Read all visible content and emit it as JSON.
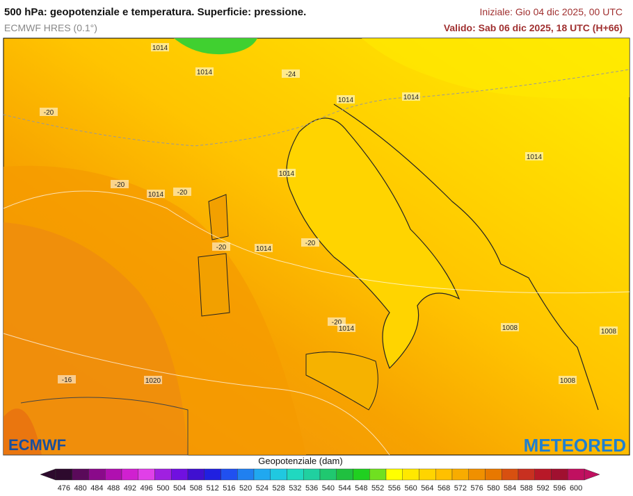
{
  "header": {
    "title": "500 hPa: geopotenziale e temperatura. Superficie: pressione.",
    "model": "ECMWF HRES (0.1°)",
    "init": "Iniziale: Gio 04 dic 2025, 00 UTC",
    "valid": "Valido: Sab 06 dic 2025, 18 UTC (H+66)"
  },
  "map_labels": [
    "1014",
    "1014",
    "-24",
    "1014",
    "1014",
    "-20",
    "1014",
    "1014",
    "-20",
    "1014",
    "-20",
    "-20",
    "1014",
    "-20",
    "-20",
    "1014",
    "1008",
    "1008",
    "-16",
    "1020",
    "1008"
  ],
  "logos": {
    "left": "ECMWF",
    "right": "METEORED"
  },
  "colorbar": {
    "title": "Geopotenziale (dam)",
    "ticks": [
      476,
      480,
      484,
      488,
      492,
      496,
      500,
      504,
      508,
      512,
      516,
      520,
      524,
      528,
      532,
      536,
      540,
      544,
      548,
      552,
      556,
      560,
      564,
      568,
      572,
      576,
      580,
      584,
      588,
      592,
      596,
      600
    ],
    "colors": [
      "#2d0a2d",
      "#5a0a5a",
      "#8a0a8a",
      "#b010b0",
      "#d020d0",
      "#e040e8",
      "#a020e0",
      "#7010e0",
      "#4010d0",
      "#2020e0",
      "#2050f0",
      "#2080f0",
      "#20a8f0",
      "#20c8e0",
      "#20d8c0",
      "#20d0a0",
      "#20c870",
      "#20c040",
      "#20d020",
      "#70e020",
      "#ffff00",
      "#ffe800",
      "#ffd400",
      "#ffc000",
      "#f8ac00",
      "#f09000",
      "#e87800",
      "#d85010",
      "#c83020",
      "#b81828",
      "#a01030",
      "#c01060"
    ]
  }
}
